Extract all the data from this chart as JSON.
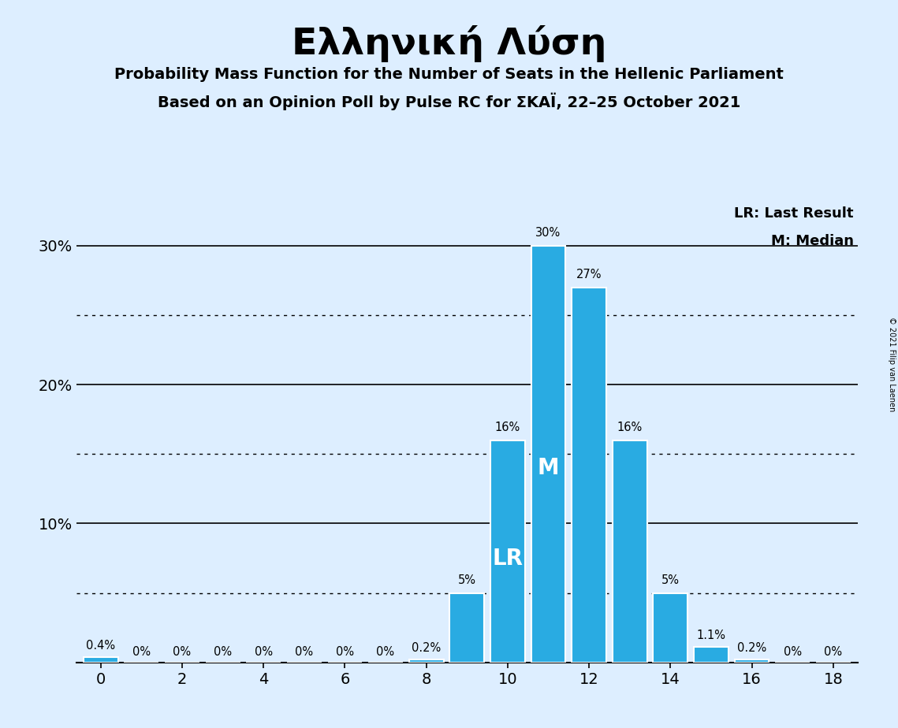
{
  "title": "Ελληνική Λύση",
  "subtitle1": "Probability Mass Function for the Number of Seats in the Hellenic Parliament",
  "subtitle2": "Based on an Opinion Poll by Pulse RC for ΣΚΑΪ, 22–25 October 2021",
  "copyright": "© 2021 Filip van Laenen",
  "seats": [
    0,
    1,
    2,
    3,
    4,
    5,
    6,
    7,
    8,
    9,
    10,
    11,
    12,
    13,
    14,
    15,
    16,
    17,
    18
  ],
  "probs": [
    0.4,
    0,
    0,
    0,
    0,
    0,
    0,
    0,
    0.2,
    5,
    16,
    30,
    27,
    16,
    5,
    1.1,
    0.2,
    0,
    0
  ],
  "bar_color": "#29abe2",
  "bar_edge_color": "white",
  "background_color": "#ddeeff",
  "lr_seat": 10,
  "median_seat": 11,
  "lr_label": "LR",
  "median_label": "M",
  "legend_lr": "LR: Last Result",
  "legend_m": "M: Median",
  "solid_lines": [
    10,
    20,
    30
  ],
  "dotted_lines": [
    5,
    15,
    25
  ],
  "ytick_labels": [
    "10%",
    "20%",
    "30%"
  ],
  "ytick_values": [
    10,
    20,
    30
  ],
  "xticks": [
    0,
    2,
    4,
    6,
    8,
    10,
    12,
    14,
    16,
    18
  ],
  "ylim": [
    0,
    33
  ],
  "xlim": [
    -0.6,
    18.6
  ]
}
